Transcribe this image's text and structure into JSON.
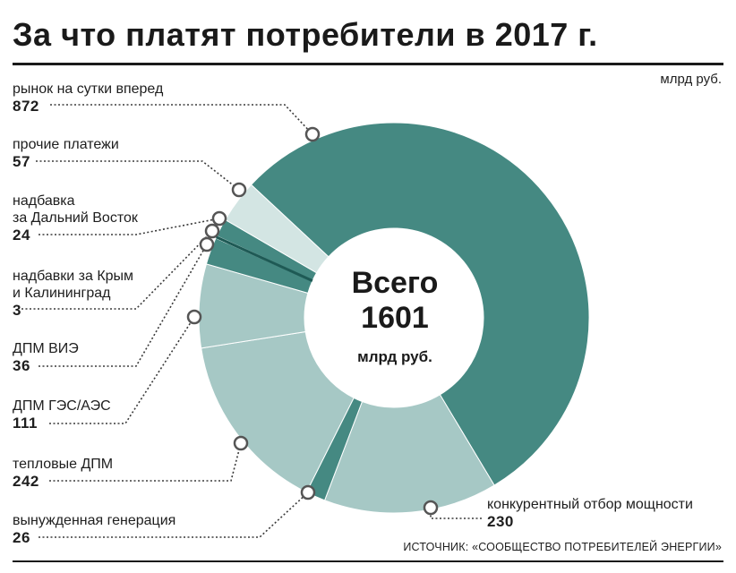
{
  "title": "За что платят потребители в 2017 г.",
  "unit": "млрд руб.",
  "source": "ИСТОЧНИК: «СООБЩЕСТВО ПОТРЕБИТЕЛЕЙ ЭНЕРГИИ»",
  "center": {
    "label": "Всего",
    "total": "1601",
    "unit": "млрд руб."
  },
  "colors": {
    "dark": "#458982",
    "light": "#a6c8c5",
    "lighter": "#d3e5e3",
    "line": "#1e5a55"
  },
  "chart_data": {
    "type": "pie",
    "title": "За что платят потребители в 2017 г.",
    "unit": "млрд руб.",
    "total": 1601,
    "slices": [
      {
        "label": "рынок на сутки вперед",
        "value": 872
      },
      {
        "label": "конкурентный отбор мощности",
        "value": 230
      },
      {
        "label": "вынужденная генерация",
        "value": 26
      },
      {
        "label": "тепловые ДПМ",
        "value": 242
      },
      {
        "label": "ДПМ ГЭС/АЭС",
        "value": 111
      },
      {
        "label": "ДПМ ВИЭ",
        "value": 36
      },
      {
        "label": "надбавки за Крым и Калининград",
        "value": 3
      },
      {
        "label": "надбавка за Дальний Восток",
        "value": 24
      },
      {
        "label": "прочие платежи",
        "value": 57
      }
    ]
  },
  "labels": [
    {
      "id": "rsv",
      "name": "рынок на сутки вперед",
      "value": "872"
    },
    {
      "id": "other",
      "name": "прочие платежи",
      "value": "57"
    },
    {
      "id": "fareast",
      "name_lines": [
        "надбавка",
        "за Дальний Восток"
      ],
      "value": "24"
    },
    {
      "id": "crimea",
      "name_lines": [
        "надбавки за Крым",
        "и Калининград"
      ],
      "value": "3"
    },
    {
      "id": "vie",
      "name": "ДПМ ВИЭ",
      "value": "36"
    },
    {
      "id": "ges",
      "name": "ДПМ ГЭС/АЭС",
      "value": "111"
    },
    {
      "id": "thermal",
      "name": "тепловые ДПМ",
      "value": "242"
    },
    {
      "id": "forced",
      "name": "вынужденная генерация",
      "value": "26"
    },
    {
      "id": "kom",
      "name": "конкурентный отбор мощности",
      "value": "230"
    }
  ]
}
